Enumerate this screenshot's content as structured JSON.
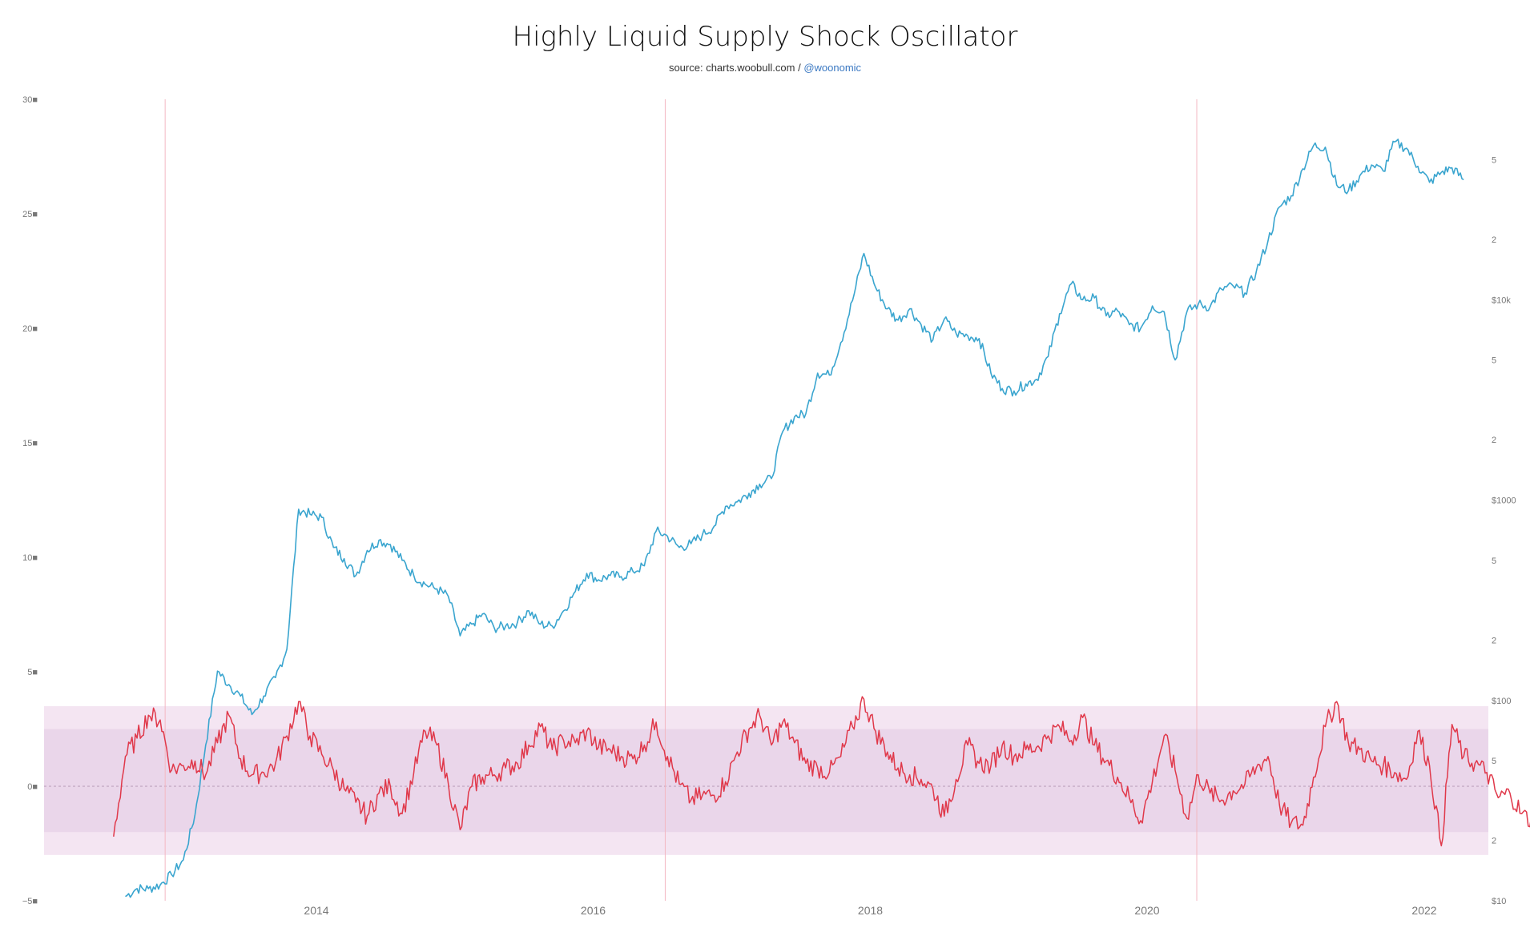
{
  "title": "Highly Liquid Supply Shock Oscillator",
  "subtitle": {
    "source": "source: charts.woobull.com /",
    "handle": "@woonomic"
  },
  "colors": {
    "price": "#3aa5cf",
    "oscillator": "#e0384a",
    "band_outer": "#f4e5f2",
    "band_inner": "#ead6ea",
    "halving": "#f3b8c2"
  },
  "chart_data": {
    "type": "line",
    "x_ticks": [
      "2014",
      "2016",
      "2018",
      "2020",
      "2022"
    ],
    "y_left": {
      "ticks": [
        "30■",
        "25■",
        "20■",
        "15■",
        "10■",
        "5■",
        "0■",
        "−5■"
      ],
      "range": [
        -5,
        30
      ]
    },
    "y_right": {
      "ticks": [
        "5",
        "2",
        "$10k",
        "5",
        "2",
        "$1000",
        "5",
        "2",
        "$100",
        "5",
        "2",
        "$10"
      ],
      "scale": "log",
      "range": [
        10,
        100000
      ]
    },
    "bands": {
      "outer": [
        -3,
        3.5
      ],
      "inner": [
        -2,
        2.5
      ],
      "zero_line": 0
    },
    "halvings": [
      "2012-11-28",
      "2016-07-09",
      "2020-05-11"
    ],
    "series": [
      {
        "key": "price",
        "axis": "right",
        "points": [
          [
            "2012-08",
            10.5
          ],
          [
            "2012-09",
            11.5
          ],
          [
            "2012-10",
            11.5
          ],
          [
            "2012-11",
            12
          ],
          [
            "2012-12",
            13.5
          ],
          [
            "2013-01",
            16
          ],
          [
            "2013-02",
            27
          ],
          [
            "2013-03",
            60
          ],
          [
            "2013-04",
            140
          ],
          [
            "2013-05",
            120
          ],
          [
            "2013-06",
            105
          ],
          [
            "2013-07",
            85
          ],
          [
            "2013-08",
            105
          ],
          [
            "2013-09",
            130
          ],
          [
            "2013-10",
            180
          ],
          [
            "2013-11",
            900
          ],
          [
            "2013-12",
            850
          ],
          [
            "2014-01",
            820
          ],
          [
            "2014-02",
            580
          ],
          [
            "2014-03",
            510
          ],
          [
            "2014-04",
            420
          ],
          [
            "2014-05",
            560
          ],
          [
            "2014-06",
            630
          ],
          [
            "2014-07",
            600
          ],
          [
            "2014-08",
            500
          ],
          [
            "2014-09",
            420
          ],
          [
            "2014-10",
            380
          ],
          [
            "2014-11",
            360
          ],
          [
            "2014-12",
            330
          ],
          [
            "2015-01",
            210
          ],
          [
            "2015-02",
            240
          ],
          [
            "2015-03",
            270
          ],
          [
            "2015-04",
            230
          ],
          [
            "2015-05",
            235
          ],
          [
            "2015-06",
            245
          ],
          [
            "2015-07",
            280
          ],
          [
            "2015-08",
            240
          ],
          [
            "2015-09",
            235
          ],
          [
            "2015-10",
            280
          ],
          [
            "2015-11",
            350
          ],
          [
            "2015-12",
            430
          ],
          [
            "2016-01",
            400
          ],
          [
            "2016-02",
            420
          ],
          [
            "2016-03",
            415
          ],
          [
            "2016-04",
            440
          ],
          [
            "2016-05",
            470
          ],
          [
            "2016-06",
            700
          ],
          [
            "2016-07",
            660
          ],
          [
            "2016-08",
            580
          ],
          [
            "2016-09",
            605
          ],
          [
            "2016-10",
            670
          ],
          [
            "2016-11",
            740
          ],
          [
            "2016-12",
            930
          ],
          [
            "2017-01",
            980
          ],
          [
            "2017-02",
            1080
          ],
          [
            "2017-03",
            1200
          ],
          [
            "2017-04",
            1280
          ],
          [
            "2017-05",
            2200
          ],
          [
            "2017-06",
            2600
          ],
          [
            "2017-07",
            2700
          ],
          [
            "2017-08",
            4300
          ],
          [
            "2017-09",
            4200
          ],
          [
            "2017-10",
            6100
          ],
          [
            "2017-11",
            9900
          ],
          [
            "2017-12",
            17000
          ],
          [
            "2018-01",
            11500
          ],
          [
            "2018-02",
            9000
          ],
          [
            "2018-03",
            7900
          ],
          [
            "2018-04",
            9000
          ],
          [
            "2018-05",
            7500
          ],
          [
            "2018-06",
            6300
          ],
          [
            "2018-07",
            8000
          ],
          [
            "2018-08",
            6800
          ],
          [
            "2018-09",
            6600
          ],
          [
            "2018-10",
            6400
          ],
          [
            "2018-11",
            4300
          ],
          [
            "2018-12",
            3600
          ],
          [
            "2019-01",
            3500
          ],
          [
            "2019-02",
            3800
          ],
          [
            "2019-03",
            4000
          ],
          [
            "2019-04",
            5200
          ],
          [
            "2019-05",
            8500
          ],
          [
            "2019-06",
            12000
          ],
          [
            "2019-07",
            10000
          ],
          [
            "2019-08",
            10200
          ],
          [
            "2019-09",
            8300
          ],
          [
            "2019-10",
            8800
          ],
          [
            "2019-11",
            7500
          ],
          [
            "2019-12",
            7200
          ],
          [
            "2020-01",
            9300
          ],
          [
            "2020-02",
            8700
          ],
          [
            "2020-03",
            5000
          ],
          [
            "2020-04",
            8700
          ],
          [
            "2020-05",
            9500
          ],
          [
            "2020-06",
            9200
          ],
          [
            "2020-07",
            11300
          ],
          [
            "2020-08",
            11700
          ],
          [
            "2020-09",
            10800
          ],
          [
            "2020-10",
            13800
          ],
          [
            "2020-11",
            19700
          ],
          [
            "2020-12",
            29000
          ],
          [
            "2021-01",
            33000
          ],
          [
            "2021-02",
            45000
          ],
          [
            "2021-03",
            58800
          ],
          [
            "2021-04",
            57700
          ],
          [
            "2021-05",
            37300
          ],
          [
            "2021-06",
            35000
          ],
          [
            "2021-07",
            41500
          ],
          [
            "2021-08",
            47000
          ],
          [
            "2021-09",
            43800
          ],
          [
            "2021-10",
            61300
          ],
          [
            "2021-11",
            57000
          ],
          [
            "2021-12",
            46300
          ],
          [
            "2022-01",
            38500
          ],
          [
            "2022-02",
            43200
          ],
          [
            "2022-03",
            45500
          ],
          [
            "2022-04",
            39700
          ]
        ]
      },
      {
        "key": "oscillator",
        "axis": "left",
        "points": [
          [
            "2012-07",
            -2.2
          ],
          [
            "2012-08",
            1.3
          ],
          [
            "2012-09",
            2.1
          ],
          [
            "2012-10",
            3.1
          ],
          [
            "2012-11",
            2.9
          ],
          [
            "2012-12",
            0.7
          ],
          [
            "2013-01",
            0.9
          ],
          [
            "2013-02",
            1.1
          ],
          [
            "2013-03",
            0.5
          ],
          [
            "2013-04",
            1.9
          ],
          [
            "2013-05",
            3.1
          ],
          [
            "2013-06",
            1.2
          ],
          [
            "2013-07",
            0.5
          ],
          [
            "2013-08",
            0.6
          ],
          [
            "2013-09",
            1.0
          ],
          [
            "2013-10",
            2.2
          ],
          [
            "2013-11",
            3.7
          ],
          [
            "2013-12",
            2.2
          ],
          [
            "2014-01",
            1.4
          ],
          [
            "2014-02",
            0.7
          ],
          [
            "2014-03",
            -0.1
          ],
          [
            "2014-04",
            -0.7
          ],
          [
            "2014-05",
            -1.3
          ],
          [
            "2014-06",
            -0.3
          ],
          [
            "2014-07",
            0.0
          ],
          [
            "2014-08",
            -1.2
          ],
          [
            "2014-09",
            0.6
          ],
          [
            "2014-10",
            2.4
          ],
          [
            "2014-11",
            1.8
          ],
          [
            "2014-12",
            0.1
          ],
          [
            "2015-01",
            -1.9
          ],
          [
            "2015-02",
            0.0
          ],
          [
            "2015-03",
            0.4
          ],
          [
            "2015-04",
            0.5
          ],
          [
            "2015-05",
            0.8
          ],
          [
            "2015-06",
            1.0
          ],
          [
            "2015-07",
            1.8
          ],
          [
            "2015-08",
            2.6
          ],
          [
            "2015-09",
            1.6
          ],
          [
            "2015-10",
            2.0
          ],
          [
            "2015-11",
            1.9
          ],
          [
            "2015-12",
            2.4
          ],
          [
            "2016-01",
            1.7
          ],
          [
            "2016-02",
            1.6
          ],
          [
            "2016-03",
            1.3
          ],
          [
            "2016-04",
            1.2
          ],
          [
            "2016-05",
            1.8
          ],
          [
            "2016-06",
            2.8
          ],
          [
            "2016-07",
            1.3
          ],
          [
            "2016-08",
            0.1
          ],
          [
            "2016-09",
            -0.6
          ],
          [
            "2016-10",
            -0.4
          ],
          [
            "2016-11",
            -0.4
          ],
          [
            "2016-12",
            0.2
          ],
          [
            "2017-01",
            1.5
          ],
          [
            "2017-02",
            2.5
          ],
          [
            "2017-03",
            3.1
          ],
          [
            "2017-04",
            1.8
          ],
          [
            "2017-05",
            2.8
          ],
          [
            "2017-06",
            1.9
          ],
          [
            "2017-07",
            1.0
          ],
          [
            "2017-08",
            0.8
          ],
          [
            "2017-09",
            0.6
          ],
          [
            "2017-10",
            1.3
          ],
          [
            "2017-11",
            2.6
          ],
          [
            "2017-12",
            3.8
          ],
          [
            "2018-01",
            2.4
          ],
          [
            "2018-02",
            1.5
          ],
          [
            "2018-03",
            0.8
          ],
          [
            "2018-04",
            0.5
          ],
          [
            "2018-05",
            0.3
          ],
          [
            "2018-06",
            -0.1
          ],
          [
            "2018-07",
            -1.3
          ],
          [
            "2018-08",
            0.3
          ],
          [
            "2018-09",
            1.8
          ],
          [
            "2018-10",
            1.0
          ],
          [
            "2018-11",
            0.9
          ],
          [
            "2018-12",
            1.8
          ],
          [
            "2019-01",
            1.3
          ],
          [
            "2019-02",
            1.6
          ],
          [
            "2019-03",
            1.7
          ],
          [
            "2019-04",
            2.2
          ],
          [
            "2019-05",
            2.6
          ],
          [
            "2019-06",
            2.0
          ],
          [
            "2019-07",
            3.0
          ],
          [
            "2019-08",
            1.8
          ],
          [
            "2019-09",
            1.1
          ],
          [
            "2019-10",
            0.4
          ],
          [
            "2019-11",
            -0.5
          ],
          [
            "2019-12",
            -1.5
          ],
          [
            "2020-01",
            0.2
          ],
          [
            "2020-02",
            2.2
          ],
          [
            "2020-03",
            0.7
          ],
          [
            "2020-04",
            -1.4
          ],
          [
            "2020-05",
            0.5
          ],
          [
            "2020-06",
            -0.3
          ],
          [
            "2020-07",
            -0.6
          ],
          [
            "2020-08",
            -0.2
          ],
          [
            "2020-09",
            0.1
          ],
          [
            "2020-10",
            0.8
          ],
          [
            "2020-11",
            1.3
          ],
          [
            "2020-12",
            -0.8
          ],
          [
            "2021-01",
            -1.6
          ],
          [
            "2021-02",
            -1.7
          ],
          [
            "2021-03",
            0.4
          ],
          [
            "2021-04",
            2.6
          ],
          [
            "2021-05",
            3.7
          ],
          [
            "2021-06",
            1.9
          ],
          [
            "2021-07",
            1.6
          ],
          [
            "2021-08",
            1.1
          ],
          [
            "2021-09",
            0.9
          ],
          [
            "2021-10",
            0.6
          ],
          [
            "2021-11",
            0.3
          ],
          [
            "2021-12",
            2.4
          ],
          [
            "2022-01",
            0.9
          ],
          [
            "2022-02",
            -2.6
          ],
          [
            "2022-03",
            2.7
          ],
          [
            "2022-04",
            1.3
          ],
          [
            "2022-05",
            1.0
          ],
          [
            "2022-06",
            0.6
          ],
          [
            "2022-07",
            -0.5
          ],
          [
            "2022-08",
            -0.3
          ],
          [
            "2022-09",
            -1.2
          ],
          [
            "2022-10",
            -1.6
          ],
          [
            "2022-11",
            -2.7
          ]
        ]
      }
    ]
  }
}
